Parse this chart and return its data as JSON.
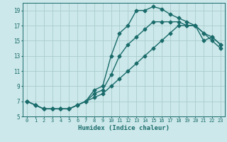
{
  "xlabel": "Humidex (Indice chaleur)",
  "background_color": "#cce8ea",
  "grid_color": "#aacccc",
  "line_color": "#1a6b6b",
  "xlim": [
    -0.5,
    23.5
  ],
  "ylim": [
    5,
    20
  ],
  "xticks": [
    0,
    1,
    2,
    3,
    4,
    5,
    6,
    7,
    8,
    9,
    10,
    11,
    12,
    13,
    14,
    15,
    16,
    17,
    18,
    19,
    20,
    21,
    22,
    23
  ],
  "yticks": [
    5,
    7,
    9,
    11,
    13,
    15,
    17,
    19
  ],
  "line1_x": [
    0,
    1,
    2,
    3,
    4,
    5,
    6,
    7,
    8,
    9,
    10,
    11,
    12,
    13,
    14,
    15,
    16,
    17,
    18,
    19,
    20,
    21,
    22,
    23
  ],
  "line1_y": [
    7,
    6.5,
    6,
    6,
    6,
    6,
    6.5,
    7,
    8.5,
    9,
    13,
    16,
    17,
    19,
    19,
    19.5,
    19.2,
    18.5,
    18,
    17.5,
    17,
    15,
    15.5,
    14.5
  ],
  "line2_x": [
    0,
    1,
    2,
    3,
    4,
    5,
    6,
    7,
    8,
    9,
    10,
    11,
    12,
    13,
    14,
    15,
    16,
    17,
    18,
    19,
    20,
    21,
    22,
    23
  ],
  "line2_y": [
    7,
    6.5,
    6,
    6,
    6,
    6,
    6.5,
    7,
    8,
    8.5,
    10.5,
    13,
    14.5,
    15.5,
    16.5,
    17.5,
    17.5,
    17.5,
    17.5,
    17,
    17,
    16,
    15.5,
    14.5
  ],
  "line3_x": [
    0,
    1,
    2,
    3,
    4,
    5,
    6,
    7,
    8,
    9,
    10,
    11,
    12,
    13,
    14,
    15,
    16,
    17,
    18,
    19,
    20,
    21,
    22,
    23
  ],
  "line3_y": [
    7,
    6.5,
    6,
    6,
    6,
    6,
    6.5,
    7,
    7.5,
    8,
    9,
    10,
    11,
    12,
    13,
    14,
    15,
    16,
    17,
    17,
    17,
    16,
    15,
    14
  ],
  "markersize": 2.5,
  "linewidth": 1.0
}
